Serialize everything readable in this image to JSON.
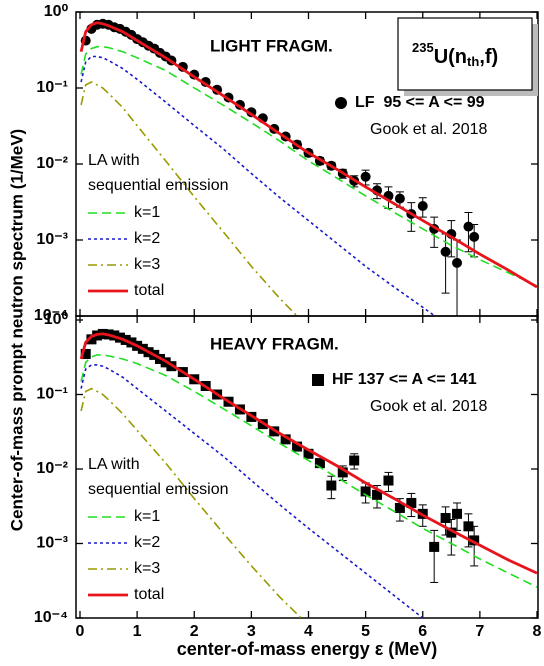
{
  "chart_data": [
    {
      "type": "line",
      "panel_label": "LIGHT FRAGM.",
      "ylabel": "Center-of-mass prompt neutron spectrum (1/MeV)",
      "reaction": [
        "235",
        "U(n",
        "th",
        ",f)"
      ],
      "citation": "Gook et al. 2018",
      "legend_title": [
        "LA with",
        "sequential emission"
      ],
      "xlim": [
        0,
        8
      ],
      "xticks": [
        0,
        1,
        2,
        3,
        4,
        5,
        6,
        7,
        8
      ],
      "show_xtick_labels": false,
      "ylim": [
        0.0001,
        1
      ],
      "log_y": true,
      "yticks": [
        {
          "value": 1,
          "label": "10⁰"
        },
        {
          "value": 0.1,
          "label": "10⁻¹"
        },
        {
          "value": 0.01,
          "label": "10⁻²"
        },
        {
          "value": 0.001,
          "label": "10⁻³"
        },
        {
          "value": 0.0001,
          "label": "10⁻⁴"
        }
      ],
      "x": [
        0.02,
        0.1,
        0.2,
        0.3,
        0.4,
        0.5,
        0.75,
        1,
        1.5,
        2,
        2.5,
        3,
        3.5,
        4,
        4.5,
        5,
        5.5,
        6,
        6.5,
        7,
        7.5,
        8
      ],
      "series": [
        {
          "name": "k=1",
          "color": "#22dd22",
          "dash": "dashed",
          "values": [
            0.15,
            0.28,
            0.33,
            0.35,
            0.35,
            0.34,
            0.3,
            0.25,
            0.17,
            0.1,
            0.06,
            0.035,
            0.02,
            0.011,
            0.0065,
            0.0038,
            0.0023,
            0.0014,
            0.00085,
            0.00055,
            0.00037,
            0.00025
          ]
        },
        {
          "name": "k=2",
          "color": "#1a1acc",
          "dash": "dotted",
          "values": [
            0.12,
            0.22,
            0.26,
            0.26,
            0.25,
            0.23,
            0.18,
            0.13,
            0.065,
            0.032,
            0.016,
            0.0075,
            0.0036,
            0.0018,
            0.0009,
            0.00045,
            0.00024,
            0.00013,
            7e-05,
            null,
            null,
            null
          ]
        },
        {
          "name": "k=3",
          "color": "#999900",
          "dash": "dashdot",
          "values": [
            0.06,
            0.11,
            0.12,
            0.11,
            0.1,
            0.085,
            0.055,
            0.032,
            0.011,
            0.0037,
            0.0013,
            0.00045,
            0.00017,
            7e-05,
            null,
            null,
            null,
            null,
            null,
            null,
            null,
            null
          ]
        },
        {
          "name": "total",
          "color": "#e8141c",
          "dash": "solid",
          "values": [
            0.3,
            0.55,
            0.68,
            0.72,
            0.7,
            0.66,
            0.55,
            0.42,
            0.25,
            0.14,
            0.08,
            0.045,
            0.025,
            0.014,
            0.0085,
            0.005,
            0.003,
            0.0018,
            0.0011,
            0.00065,
            0.0004,
            0.00024
          ]
        }
      ],
      "points": {
        "name": "LF  95 <= A <= 99",
        "marker": "circle",
        "color": "#000000",
        "x": [
          0.1,
          0.2,
          0.3,
          0.4,
          0.5,
          0.6,
          0.7,
          0.8,
          0.9,
          1.0,
          1.1,
          1.2,
          1.3,
          1.4,
          1.5,
          1.6,
          1.8,
          2.0,
          2.2,
          2.4,
          2.6,
          2.8,
          3.0,
          3.2,
          3.4,
          3.6,
          3.8,
          4.0,
          4.2,
          4.4,
          4.6,
          4.8,
          5.0,
          5.2,
          5.4,
          5.6,
          5.8,
          6.0,
          6.2,
          6.4,
          6.5,
          6.6,
          6.8,
          6.9
        ],
        "values": [
          0.42,
          0.6,
          0.68,
          0.7,
          0.68,
          0.63,
          0.6,
          0.55,
          0.5,
          0.44,
          0.4,
          0.36,
          0.33,
          0.29,
          0.26,
          0.23,
          0.19,
          0.15,
          0.12,
          0.095,
          0.075,
          0.06,
          0.048,
          0.04,
          0.029,
          0.023,
          0.018,
          0.014,
          0.011,
          0.0095,
          0.0075,
          0.006,
          0.0068,
          0.0045,
          0.0038,
          0.0035,
          0.0022,
          0.0028,
          0.0014,
          0.0007,
          0.0012,
          0.0005,
          0.0015,
          0.0011
        ],
        "errors": [
          0.03,
          0.04,
          0.04,
          0.04,
          0.04,
          0.04,
          0.04,
          0.04,
          0.03,
          0.03,
          0.03,
          0.03,
          0.03,
          0.02,
          0.02,
          0.02,
          0.015,
          0.012,
          0.01,
          0.008,
          0.006,
          0.005,
          0.004,
          0.003,
          0.0025,
          0.002,
          0.002,
          0.0015,
          0.0012,
          0.001,
          0.001,
          0.001,
          0.0015,
          0.001,
          0.0012,
          0.0008,
          0.0009,
          0.0008,
          0.0006,
          0.0005,
          0.0006,
          0.0005,
          0.0008,
          0.0005
        ]
      }
    },
    {
      "type": "line",
      "panel_label": "HEAVY FRAGM.",
      "xlabel": "center-of-mass energy ε (MeV)",
      "citation": "Gook et al. 2018",
      "legend_title": [
        "LA with",
        "sequential emission"
      ],
      "xlim": [
        0,
        8
      ],
      "xticks": [
        0,
        1,
        2,
        3,
        4,
        5,
        6,
        7,
        8
      ],
      "show_xtick_labels": true,
      "ylim": [
        0.0001,
        1
      ],
      "log_y": true,
      "yticks": [
        {
          "value": 1,
          "label": "10⁰"
        },
        {
          "value": 0.1,
          "label": "10⁻¹"
        },
        {
          "value": 0.01,
          "label": "10⁻²"
        },
        {
          "value": 0.001,
          "label": "10⁻³"
        },
        {
          "value": 0.0001,
          "label": "10⁻⁴"
        }
      ],
      "x": [
        0.02,
        0.1,
        0.2,
        0.3,
        0.4,
        0.5,
        0.75,
        1,
        1.5,
        2,
        2.5,
        3,
        3.5,
        4,
        4.5,
        5,
        5.5,
        6,
        6.5,
        7,
        7.5,
        8
      ],
      "series": [
        {
          "name": "k=1",
          "color": "#22dd22",
          "dash": "dashed",
          "values": [
            0.15,
            0.27,
            0.32,
            0.34,
            0.34,
            0.33,
            0.3,
            0.26,
            0.18,
            0.11,
            0.065,
            0.038,
            0.022,
            0.013,
            0.0077,
            0.0045,
            0.0027,
            0.0016,
            0.001,
            0.00062,
            0.0004,
            0.00026
          ]
        },
        {
          "name": "k=2",
          "color": "#1a1acc",
          "dash": "dotted",
          "values": [
            0.12,
            0.22,
            0.25,
            0.25,
            0.24,
            0.22,
            0.17,
            0.12,
            0.06,
            0.03,
            0.015,
            0.007,
            0.0033,
            0.0016,
            0.0008,
            0.0004,
            0.0002,
            0.0001,
            5e-05,
            null,
            null,
            null
          ]
        },
        {
          "name": "k=3",
          "color": "#999900",
          "dash": "dashdot",
          "values": [
            0.06,
            0.11,
            0.12,
            0.11,
            0.1,
            0.085,
            0.055,
            0.033,
            0.012,
            0.004,
            0.0014,
            0.0005,
            0.00019,
            8e-05,
            null,
            null,
            null,
            null,
            null,
            null,
            null,
            null
          ]
        },
        {
          "name": "total",
          "color": "#e8141c",
          "dash": "solid",
          "values": [
            0.3,
            0.5,
            0.6,
            0.64,
            0.65,
            0.63,
            0.55,
            0.45,
            0.28,
            0.16,
            0.09,
            0.052,
            0.03,
            0.018,
            0.011,
            0.0065,
            0.004,
            0.0024,
            0.0015,
            0.00095,
            0.0006,
            0.0004
          ]
        }
      ],
      "points": {
        "name": "HF 137 <= A <= 141",
        "marker": "square",
        "color": "#000000",
        "x": [
          0.1,
          0.2,
          0.3,
          0.4,
          0.5,
          0.6,
          0.7,
          0.8,
          0.9,
          1.0,
          1.1,
          1.2,
          1.3,
          1.4,
          1.5,
          1.6,
          1.8,
          2.0,
          2.2,
          2.4,
          2.6,
          2.8,
          3.0,
          3.2,
          3.4,
          3.6,
          3.8,
          4.0,
          4.2,
          4.4,
          4.6,
          4.8,
          5.0,
          5.2,
          5.4,
          5.6,
          5.8,
          6.0,
          6.2,
          6.4,
          6.5,
          6.6,
          6.8,
          6.9
        ],
        "values": [
          0.35,
          0.55,
          0.62,
          0.65,
          0.64,
          0.62,
          0.58,
          0.54,
          0.5,
          0.45,
          0.41,
          0.37,
          0.34,
          0.3,
          0.27,
          0.24,
          0.2,
          0.16,
          0.13,
          0.1,
          0.08,
          0.063,
          0.05,
          0.04,
          0.032,
          0.025,
          0.02,
          0.016,
          0.012,
          0.006,
          0.009,
          0.013,
          0.005,
          0.0045,
          0.007,
          0.003,
          0.0035,
          0.0025,
          0.0009,
          0.0022,
          0.0014,
          0.0025,
          0.0017,
          0.0011
        ],
        "errors": [
          0.03,
          0.04,
          0.04,
          0.04,
          0.04,
          0.04,
          0.04,
          0.04,
          0.03,
          0.03,
          0.03,
          0.03,
          0.03,
          0.02,
          0.02,
          0.02,
          0.015,
          0.012,
          0.01,
          0.008,
          0.006,
          0.005,
          0.004,
          0.003,
          0.0025,
          0.002,
          0.002,
          0.0015,
          0.0012,
          0.002,
          0.002,
          0.003,
          0.0015,
          0.0015,
          0.002,
          0.001,
          0.0012,
          0.0008,
          0.0006,
          0.0009,
          0.0007,
          0.001,
          0.0008,
          0.0006
        ]
      }
    }
  ]
}
